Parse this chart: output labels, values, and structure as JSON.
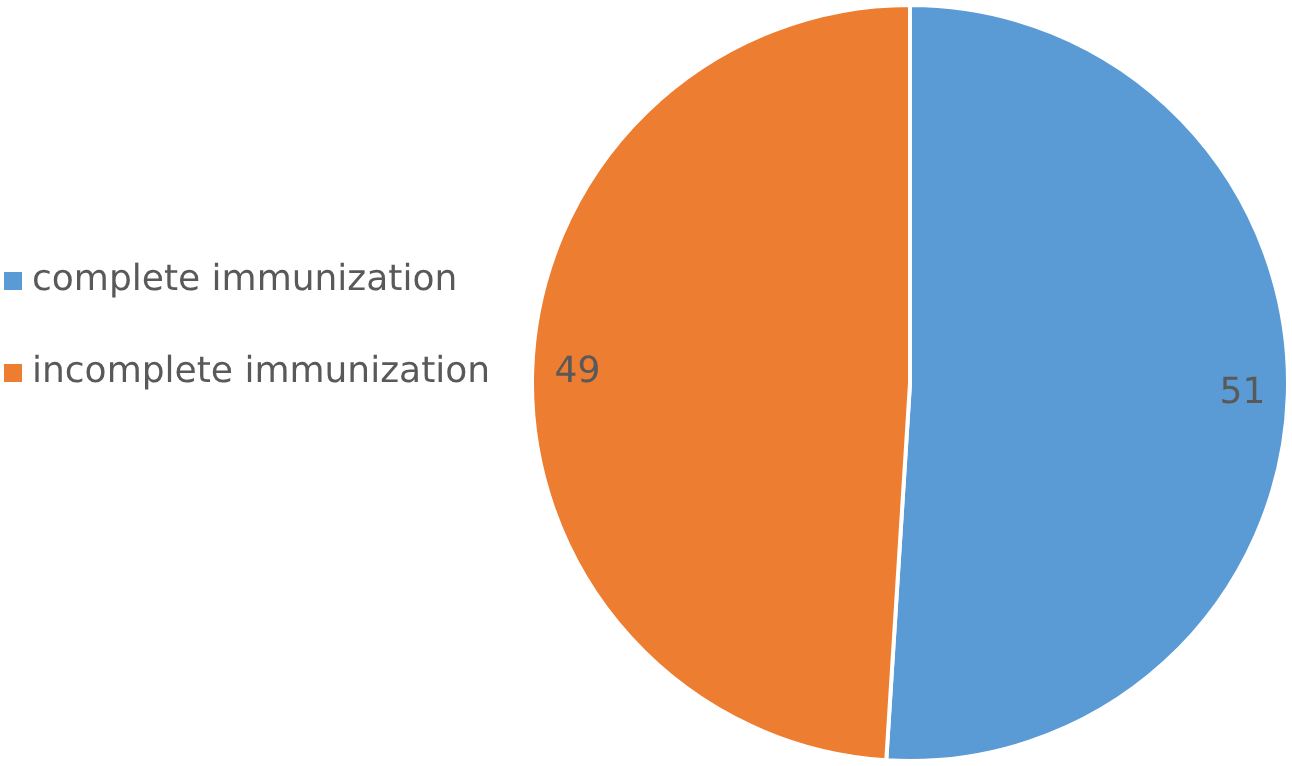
{
  "chart_data": {
    "type": "pie",
    "categories": [
      "complete immunization",
      "incomplete immunization"
    ],
    "values": [
      51,
      49
    ],
    "colors": [
      "#5b9bd5",
      "#ed7d31"
    ],
    "data_labels": true,
    "legend": "left"
  }
}
